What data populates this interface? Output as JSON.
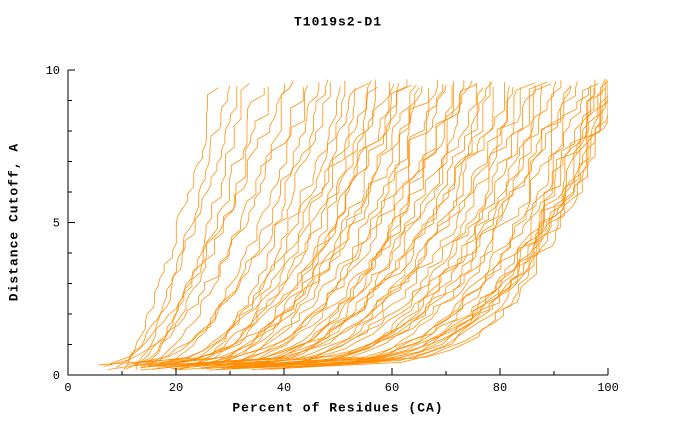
{
  "chart_data": {
    "type": "line",
    "title": "T1019s2-D1",
    "xlabel": "Percent of Residues (CA)",
    "ylabel": "Distance Cutoff, A",
    "xlim": [
      0,
      100
    ],
    "ylim": [
      0,
      10
    ],
    "x_ticks": [
      0,
      20,
      40,
      60,
      80,
      100
    ],
    "y_ticks": [
      0,
      5,
      10
    ],
    "x_minor_step": 10,
    "y_minor_step": 1,
    "grid": false,
    "legend": "none",
    "background": "#FFFFFF",
    "axis_color": "#000000",
    "line_color": "#FF8C00",
    "line_width": 0.8,
    "y_data_min": 0.2,
    "y_data_max": 9.65,
    "curve_model": "per-model cumulative accuracy curves; x(t)=x_start+(x_top-x_start)*t^q with t=(y-y_min)/(y_max-y_min), monotone jitter added",
    "curves": [
      [
        10,
        27,
        0.75
      ],
      [
        12,
        29,
        0.7
      ],
      [
        9,
        31,
        0.65
      ],
      [
        14,
        33,
        0.7
      ],
      [
        11,
        35,
        0.6
      ],
      [
        13,
        37,
        0.65
      ],
      [
        8,
        39,
        0.6
      ],
      [
        15,
        41,
        0.62
      ],
      [
        6,
        43,
        0.5
      ],
      [
        16,
        44,
        0.55
      ],
      [
        12,
        46,
        0.45
      ],
      [
        20,
        47,
        0.5
      ],
      [
        7,
        48,
        0.42
      ],
      [
        18,
        50,
        0.48
      ],
      [
        14,
        51,
        0.4
      ],
      [
        22,
        52,
        0.5
      ],
      [
        11,
        54,
        0.38
      ],
      [
        19,
        55,
        0.45
      ],
      [
        13,
        56,
        0.4
      ],
      [
        24,
        57,
        0.48
      ],
      [
        16,
        58,
        0.36
      ],
      [
        21,
        59,
        0.42
      ],
      [
        12,
        60,
        0.38
      ],
      [
        15,
        61,
        0.35
      ],
      [
        25,
        62,
        0.45
      ],
      [
        18,
        63,
        0.4
      ],
      [
        6,
        64,
        0.32
      ],
      [
        27,
        65,
        0.42
      ],
      [
        14,
        66,
        0.35
      ],
      [
        22,
        67,
        0.38
      ],
      [
        17,
        68,
        0.33
      ],
      [
        29,
        69,
        0.4
      ],
      [
        13,
        70,
        0.3
      ],
      [
        24,
        71,
        0.36
      ],
      [
        19,
        72,
        0.34
      ],
      [
        31,
        73,
        0.4
      ],
      [
        16,
        74,
        0.3
      ],
      [
        26,
        75,
        0.36
      ],
      [
        21,
        76,
        0.32
      ],
      [
        33,
        77,
        0.38
      ],
      [
        15,
        78,
        0.3
      ],
      [
        28,
        79,
        0.34
      ],
      [
        23,
        80,
        0.32
      ],
      [
        18,
        81,
        0.3
      ],
      [
        30,
        82,
        0.36
      ],
      [
        25,
        83,
        0.3
      ],
      [
        35,
        84,
        0.34
      ],
      [
        20,
        85,
        0.28
      ],
      [
        32,
        86,
        0.32
      ],
      [
        27,
        87,
        0.3
      ],
      [
        38,
        88,
        0.34
      ],
      [
        22,
        89,
        0.27
      ],
      [
        34,
        90,
        0.3
      ],
      [
        29,
        91,
        0.32
      ],
      [
        40,
        92,
        0.3
      ],
      [
        24,
        93,
        0.27
      ],
      [
        36,
        94,
        0.3
      ],
      [
        31,
        95,
        0.28
      ],
      [
        42,
        96,
        0.3
      ],
      [
        26,
        97,
        0.26
      ],
      [
        38,
        97.5,
        0.3
      ],
      [
        33,
        98,
        0.27
      ],
      [
        44,
        98.5,
        0.3
      ],
      [
        28,
        99,
        0.25
      ],
      [
        40,
        99.2,
        0.28
      ],
      [
        35,
        99.5,
        0.26
      ],
      [
        46,
        99.7,
        0.3
      ],
      [
        30,
        99.8,
        0.25
      ],
      [
        48,
        100,
        0.28
      ],
      [
        36,
        100,
        0.24
      ]
    ]
  }
}
